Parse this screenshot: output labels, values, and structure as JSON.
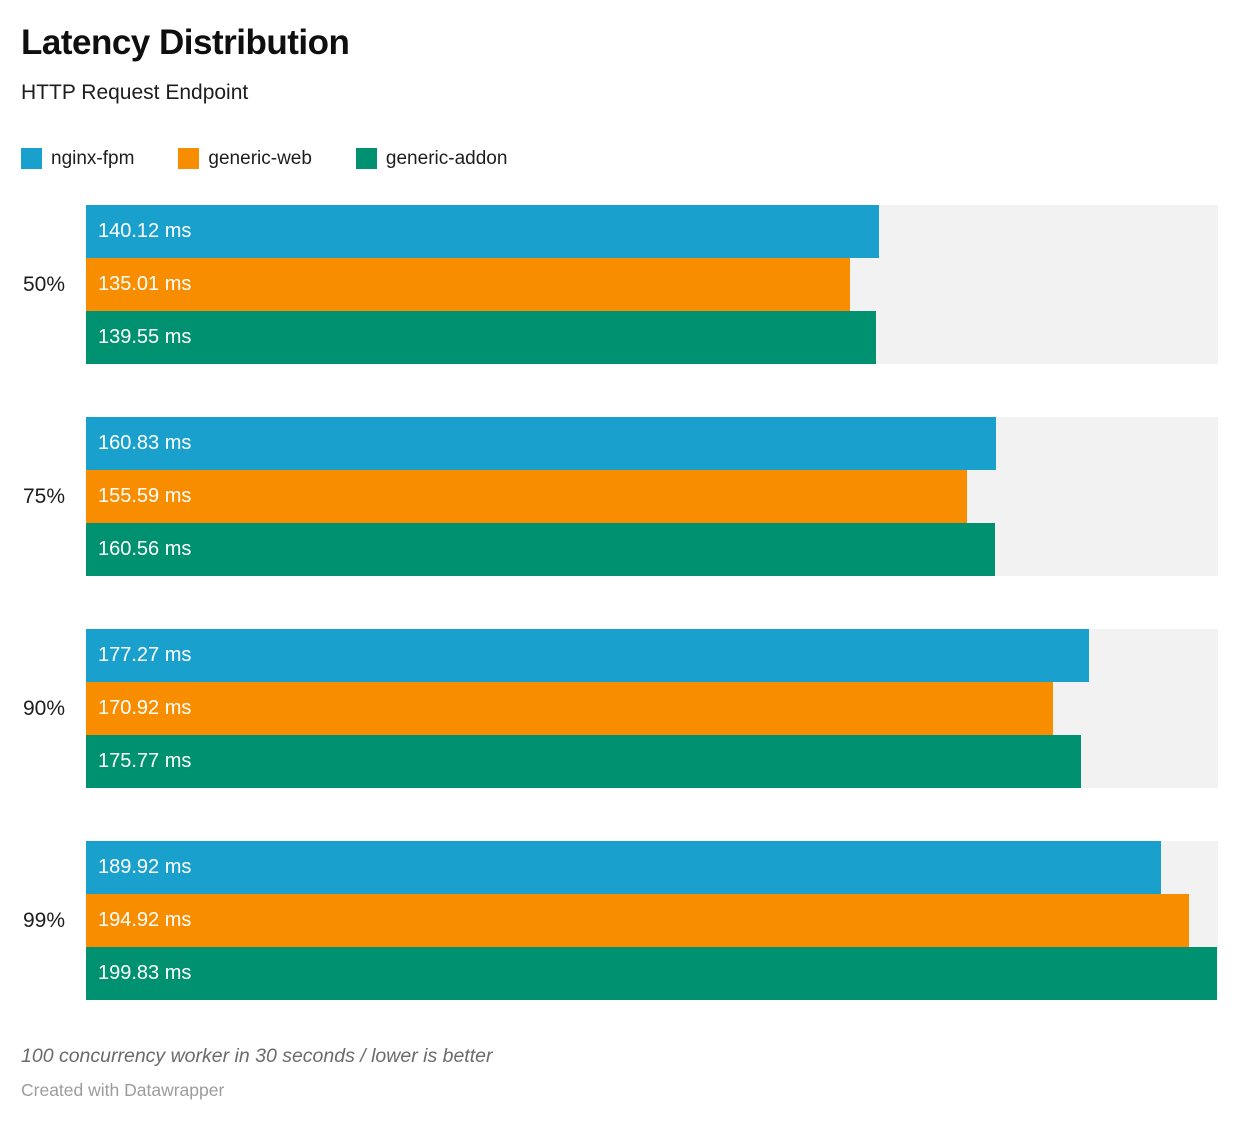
{
  "header": {
    "title": "Latency Distribution",
    "subtitle": "HTTP Request Endpoint"
  },
  "chart_data": {
    "type": "bar",
    "orientation": "horizontal",
    "grouped": true,
    "title": "Latency Distribution",
    "subtitle": "HTTP Request Endpoint",
    "unit": "ms",
    "axis_max": 200,
    "axis_visible": false,
    "grid": false,
    "legend_position": "top",
    "track_color": "#f2f2f2",
    "categories": [
      "50%",
      "75%",
      "90%",
      "99%"
    ],
    "series": [
      {
        "name": "nginx-fpm",
        "color": "#1aa0cd",
        "values": [
          140.12,
          160.83,
          177.27,
          189.92
        ]
      },
      {
        "name": "generic-web",
        "color": "#f98d00",
        "values": [
          135.01,
          155.59,
          170.92,
          194.92
        ]
      },
      {
        "name": "generic-addon",
        "color": "#009170",
        "values": [
          139.55,
          160.56,
          175.77,
          199.83
        ]
      }
    ],
    "value_label_format": "{value} ms"
  },
  "footer": {
    "note": "100 concurrency worker in 30 seconds / lower is better",
    "attribution": "Created with Datawrapper"
  }
}
